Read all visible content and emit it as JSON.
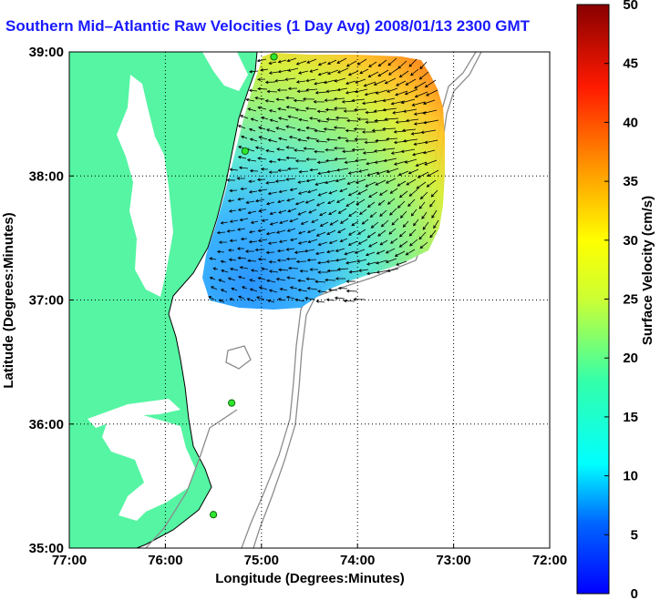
{
  "title": "Southern Mid–Atlantic Raw Velocities (1 Day Avg) 2008/01/13 2300 GMT",
  "chart_data": {
    "type": "vector-map",
    "xlabel": "Longitude (Degrees:Minutes)",
    "ylabel": "Latitude (Degrees:Minutes)",
    "xlim": [
      -77,
      -72
    ],
    "ylim": [
      35,
      39
    ],
    "x_ticks": [
      "77:00",
      "76:00",
      "75:00",
      "74:00",
      "73:00",
      "72:00"
    ],
    "y_ticks": [
      "39:00",
      "38:00",
      "37:00",
      "36:00",
      "35:00"
    ],
    "grid": "dotted",
    "colorbar": {
      "label": "Surface Velocity (cm/s)",
      "range": [
        0,
        50
      ],
      "ticks": [
        "50",
        "45",
        "40",
        "35",
        "30",
        "25",
        "20",
        "15",
        "10",
        "5",
        "0"
      ],
      "colormap": "jet"
    },
    "land_color": "#55f5a3",
    "water_color": "#ffffff",
    "stations": [
      {
        "lon": -74.87,
        "lat": 38.96
      },
      {
        "lon": -75.17,
        "lat": 38.2
      },
      {
        "lon": -75.31,
        "lat": 36.17
      },
      {
        "lon": -75.5,
        "lat": 35.27
      }
    ]
  }
}
